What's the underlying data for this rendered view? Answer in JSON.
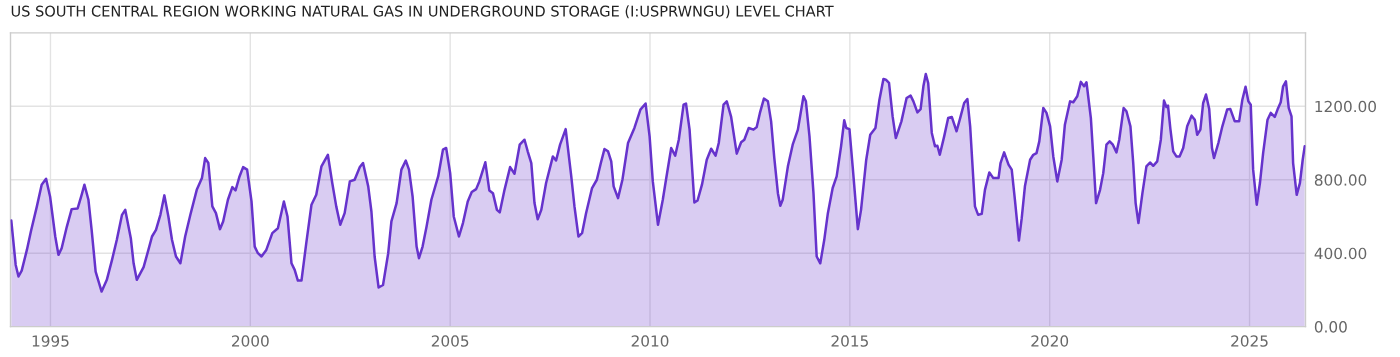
{
  "chart_data": {
    "type": "area",
    "title": "US SOUTH CENTRAL REGION WORKING NATURAL GAS IN UNDERGROUND STORAGE (I:USPRWNGU) LEVEL CHART",
    "color": "#6633cc",
    "grid": true,
    "legend": false,
    "xlim": [
      1994.0,
      2026.4
    ],
    "xticks": [
      1995,
      2000,
      2005,
      2010,
      2015,
      2020,
      2025
    ],
    "ylim": [
      0,
      1600
    ],
    "yticks": [
      {
        "value": 0,
        "label": "0.00"
      },
      {
        "value": 400,
        "label": "400.00"
      },
      {
        "value": 800,
        "label": "800.00"
      },
      {
        "value": 1200,
        "label": "1200.00"
      }
    ],
    "x": [
      1994.02,
      1994.13,
      1994.2,
      1994.28,
      1994.41,
      1994.51,
      1994.66,
      1994.78,
      1994.89,
      1994.99,
      1995.12,
      1995.2,
      1995.28,
      1995.41,
      1995.53,
      1995.68,
      1995.78,
      1995.85,
      1995.95,
      1996.03,
      1996.13,
      1996.28,
      1996.41,
      1996.54,
      1996.66,
      1996.79,
      1996.87,
      1997.01,
      1997.08,
      1997.16,
      1997.33,
      1997.45,
      1997.54,
      1997.64,
      1997.75,
      1997.85,
      1997.95,
      1998.04,
      1998.14,
      1998.25,
      1998.37,
      1998.5,
      1998.66,
      1998.79,
      1998.87,
      1998.95,
      1999.05,
      1999.14,
      1999.24,
      1999.32,
      1999.44,
      1999.55,
      1999.63,
      1999.73,
      1999.82,
      1999.92,
      2000.03,
      2000.11,
      2000.19,
      2000.28,
      2000.4,
      2000.55,
      2000.69,
      2000.84,
      2000.93,
      2001.03,
      2001.11,
      2001.19,
      2001.28,
      2001.4,
      2001.53,
      2001.65,
      2001.78,
      2001.94,
      2002.05,
      2002.15,
      2002.25,
      2002.36,
      2002.49,
      2002.61,
      2002.74,
      2002.82,
      2002.95,
      2003.03,
      2003.11,
      2003.21,
      2003.32,
      2003.45,
      2003.53,
      2003.66,
      2003.78,
      2003.89,
      2003.97,
      2004.06,
      2004.16,
      2004.22,
      2004.31,
      2004.41,
      2004.53,
      2004.7,
      2004.82,
      2004.9,
      2005.0,
      2005.09,
      2005.22,
      2005.32,
      2005.44,
      2005.54,
      2005.65,
      2005.73,
      2005.88,
      2005.98,
      2006.07,
      2006.17,
      2006.24,
      2006.36,
      2006.5,
      2006.61,
      2006.74,
      2006.86,
      2006.94,
      2007.03,
      2007.11,
      2007.19,
      2007.28,
      2007.4,
      2007.57,
      2007.65,
      2007.75,
      2007.89,
      2008.03,
      2008.11,
      2008.21,
      2008.3,
      2008.4,
      2008.55,
      2008.67,
      2008.77,
      2008.86,
      2008.95,
      2009.03,
      2009.09,
      2009.2,
      2009.31,
      2009.45,
      2009.61,
      2009.76,
      2009.89,
      2009.99,
      2010.07,
      2010.2,
      2010.32,
      2010.4,
      2010.53,
      2010.63,
      2010.72,
      2010.84,
      2010.9,
      2010.99,
      2011.11,
      2011.19,
      2011.3,
      2011.42,
      2011.53,
      2011.64,
      2011.72,
      2011.84,
      2011.92,
      2012.03,
      2012.17,
      2012.28,
      2012.36,
      2012.47,
      2012.59,
      2012.67,
      2012.75,
      2012.85,
      2012.95,
      2013.03,
      2013.11,
      2013.2,
      2013.26,
      2013.32,
      2013.45,
      2013.57,
      2013.7,
      2013.84,
      2013.9,
      2013.99,
      2014.09,
      2014.17,
      2014.26,
      2014.36,
      2014.45,
      2014.57,
      2014.67,
      2014.78,
      2014.86,
      2014.91,
      2014.99,
      2015.07,
      2015.16,
      2015.2,
      2015.28,
      2015.41,
      2015.51,
      2015.64,
      2015.74,
      2015.84,
      2015.9,
      2015.98,
      2016.07,
      2016.15,
      2016.29,
      2016.42,
      2016.52,
      2016.59,
      2016.69,
      2016.77,
      2016.84,
      2016.9,
      2016.96,
      2017.05,
      2017.13,
      2017.19,
      2017.25,
      2017.36,
      2017.46,
      2017.55,
      2017.67,
      2017.76,
      2017.86,
      2017.94,
      2018.01,
      2018.13,
      2018.21,
      2018.3,
      2018.38,
      2018.49,
      2018.59,
      2018.72,
      2018.77,
      2018.86,
      2018.97,
      2019.05,
      2019.13,
      2019.23,
      2019.3,
      2019.38,
      2019.51,
      2019.59,
      2019.67,
      2019.74,
      2019.84,
      2019.92,
      2020.01,
      2020.09,
      2020.19,
      2020.3,
      2020.38,
      2020.51,
      2020.59,
      2020.69,
      2020.78,
      2020.86,
      2020.92,
      2021.03,
      2021.09,
      2021.16,
      2021.26,
      2021.34,
      2021.42,
      2021.5,
      2021.58,
      2021.67,
      2021.74,
      2021.85,
      2021.92,
      2022.02,
      2022.09,
      2022.15,
      2022.22,
      2022.32,
      2022.42,
      2022.51,
      2022.59,
      2022.69,
      2022.78,
      2022.86,
      2022.92,
      2022.96,
      2023.02,
      2023.09,
      2023.17,
      2023.25,
      2023.34,
      2023.44,
      2023.55,
      2023.63,
      2023.69,
      2023.77,
      2023.84,
      2023.91,
      2023.99,
      2024.06,
      2024.11,
      2024.22,
      2024.32,
      2024.44,
      2024.52,
      2024.63,
      2024.74,
      2024.82,
      2024.9,
      2024.97,
      2025.03,
      2025.09,
      2025.18,
      2025.26,
      2025.34,
      2025.45,
      2025.53,
      2025.63,
      2025.7,
      2025.78,
      2025.84,
      2025.91,
      2025.98,
      2026.05,
      2026.09,
      2026.18,
      2026.26,
      2026.33,
      2026.38
    ],
    "values": [
      578,
      336,
      273,
      305,
      418,
      518,
      655,
      773,
      805,
      709,
      491,
      391,
      427,
      545,
      640,
      644,
      718,
      773,
      691,
      527,
      300,
      191,
      255,
      364,
      473,
      609,
      636,
      482,
      345,
      255,
      324,
      418,
      491,
      527,
      609,
      715,
      600,
      473,
      382,
      345,
      491,
      609,
      745,
      809,
      918,
      891,
      655,
      618,
      531,
      573,
      691,
      760,
      742,
      818,
      869,
      855,
      682,
      436,
      400,
      382,
      418,
      509,
      536,
      682,
      600,
      345,
      309,
      251,
      251,
      455,
      664,
      718,
      873,
      936,
      782,
      655,
      555,
      618,
      791,
      800,
      869,
      891,
      764,
      627,
      382,
      213,
      227,
      400,
      573,
      673,
      855,
      904,
      855,
      709,
      436,
      373,
      436,
      545,
      691,
      818,
      964,
      973,
      836,
      600,
      491,
      564,
      682,
      733,
      749,
      791,
      895,
      742,
      727,
      636,
      622,
      745,
      869,
      833,
      991,
      1018,
      955,
      891,
      673,
      585,
      636,
      782,
      927,
      905,
      991,
      1076,
      818,
      655,
      491,
      509,
      618,
      755,
      800,
      891,
      967,
      955,
      900,
      764,
      700,
      800,
      1000,
      1082,
      1182,
      1215,
      1036,
      791,
      555,
      691,
      800,
      973,
      931,
      1018,
      1209,
      1215,
      1073,
      676,
      687,
      773,
      909,
      969,
      931,
      1000,
      1209,
      1227,
      1142,
      942,
      1004,
      1018,
      1082,
      1073,
      1087,
      1164,
      1242,
      1227,
      1118,
      918,
      727,
      658,
      691,
      873,
      991,
      1073,
      1255,
      1227,
      1036,
      727,
      382,
      345,
      473,
      618,
      755,
      818,
      982,
      1124,
      1082,
      1076,
      873,
      636,
      531,
      636,
      909,
      1045,
      1082,
      1236,
      1349,
      1345,
      1327,
      1145,
      1027,
      1118,
      1245,
      1258,
      1227,
      1167,
      1185,
      1309,
      1376,
      1327,
      1055,
      982,
      985,
      936,
      1036,
      1136,
      1142,
      1064,
      1136,
      1218,
      1240,
      1091,
      655,
      609,
      615,
      745,
      840,
      809,
      809,
      891,
      949,
      882,
      855,
      691,
      469,
      591,
      764,
      909,
      936,
      945,
      1009,
      1191,
      1164,
      1091,
      927,
      791,
      909,
      1100,
      1227,
      1222,
      1255,
      1333,
      1309,
      1331,
      1136,
      927,
      673,
      745,
      836,
      991,
      1009,
      991,
      949,
      1018,
      1191,
      1173,
      1091,
      891,
      673,
      564,
      727,
      873,
      894,
      876,
      900,
      1018,
      1231,
      1196,
      1204,
      1076,
      955,
      927,
      927,
      973,
      1091,
      1149,
      1127,
      1045,
      1073,
      1218,
      1264,
      1187,
      973,
      918,
      1000,
      1091,
      1182,
      1185,
      1118,
      1118,
      1236,
      1306,
      1227,
      1209,
      855,
      664,
      782,
      945,
      1127,
      1164,
      1142,
      1182,
      1222,
      1309,
      1336,
      1191,
      1145,
      891,
      718,
      782,
      909,
      982
    ]
  }
}
